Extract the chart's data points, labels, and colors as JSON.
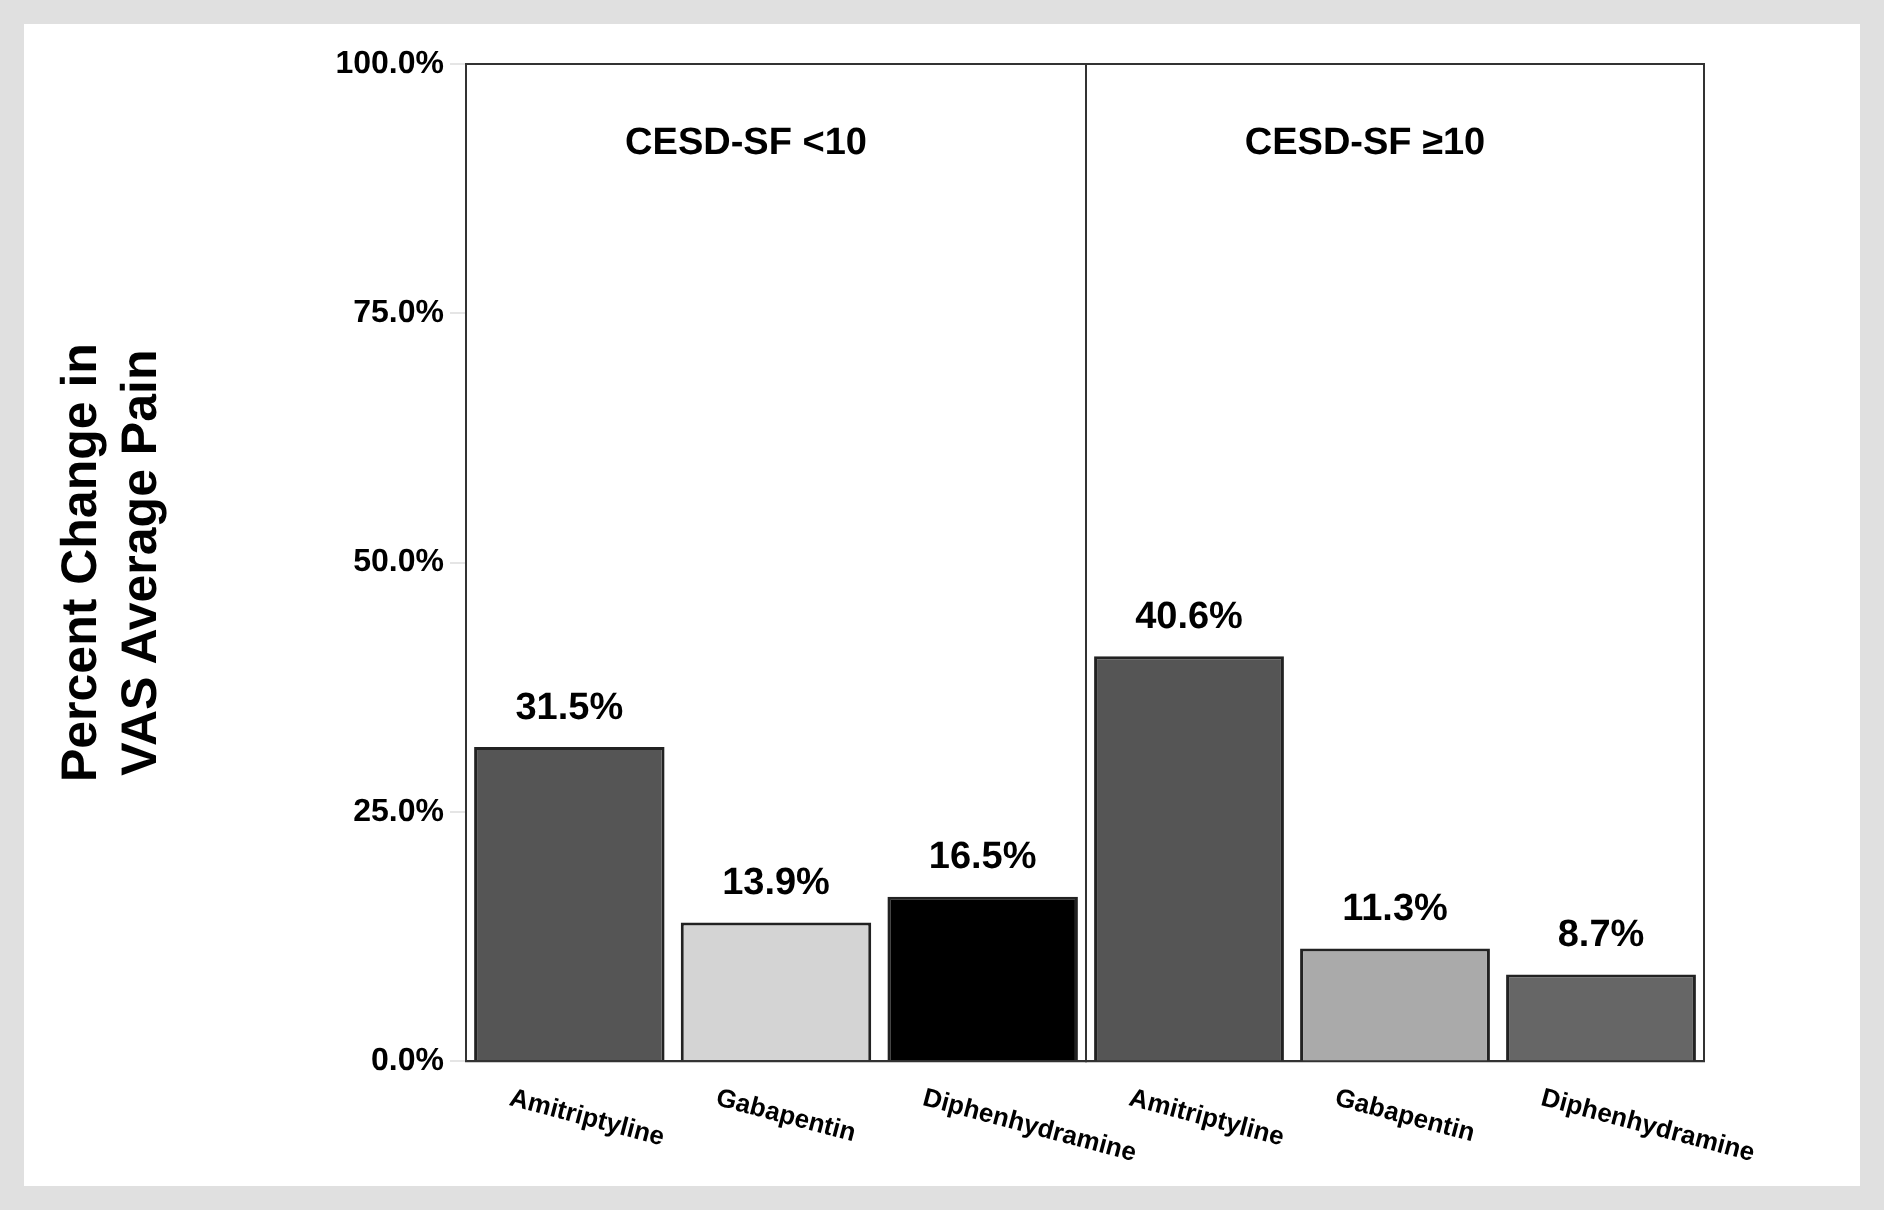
{
  "chart_data": [
    {
      "type": "bar",
      "ylabel": "Percent Change in\nVAS Average Pain",
      "categories": [
        "Amitriptyline",
        "Gabapentin",
        "Diphenhydramine"
      ],
      "values": [
        31.5,
        13.9,
        16.5
      ],
      "colors": [
        "#555555",
        "#d4d4d4",
        "#000000"
      ],
      "value_labels": [
        "31.5%",
        "13.9%",
        "16.5%"
      ],
      "ylim": [
        0,
        100
      ],
      "yticks": [
        {
          "value": 0,
          "label": "0.0%"
        },
        {
          "value": 25,
          "label": "25.0%"
        },
        {
          "value": 50,
          "label": "50.0%"
        },
        {
          "value": 75,
          "label": "75.0%"
        },
        {
          "value": 100,
          "label": "100.0%"
        }
      ],
      "annotations": [
        "CESD-SF <10"
      ],
      "grid": false,
      "legend": false
    },
    {
      "type": "bar",
      "categories": [
        "Amitriptyline",
        "Gabapentin",
        "Diphenhydramine"
      ],
      "values": [
        40.6,
        11.3,
        8.7
      ],
      "colors": [
        "#555555",
        "#aaaaaa",
        "#666666"
      ],
      "value_labels": [
        "40.6%",
        "11.3%",
        "8.7%"
      ],
      "ylim": [
        0,
        100
      ],
      "annotations": [
        "CESD-SF ≥10"
      ],
      "tick_labels": "x",
      "grid": false,
      "legend": false
    }
  ]
}
